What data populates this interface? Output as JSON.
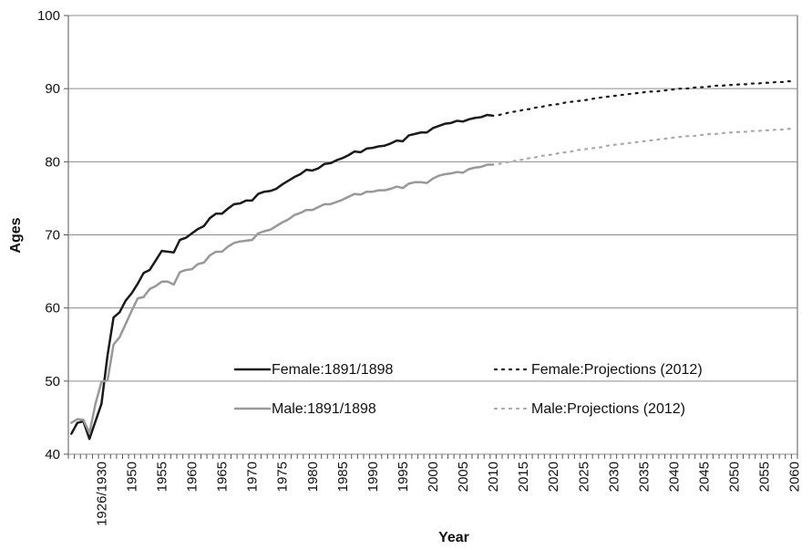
{
  "chart_data": {
    "type": "line",
    "x_label": "Year",
    "y_label": "Ages",
    "ylim": [
      40,
      100
    ],
    "yticks": [
      40,
      50,
      60,
      70,
      80,
      90,
      100
    ],
    "grid": true,
    "legend": "inside",
    "categories": [
      null,
      null,
      null,
      null,
      null,
      "1926/1930",
      null,
      null,
      null,
      null,
      "1950",
      null,
      null,
      null,
      null,
      "1955",
      null,
      null,
      null,
      null,
      "1960",
      null,
      null,
      null,
      null,
      "1965",
      null,
      null,
      null,
      null,
      "1970",
      null,
      null,
      null,
      null,
      "1975",
      null,
      null,
      null,
      null,
      "1980",
      null,
      null,
      null,
      null,
      "1985",
      null,
      null,
      null,
      null,
      "1990",
      null,
      null,
      null,
      null,
      "1995",
      null,
      null,
      null,
      null,
      "2000",
      null,
      null,
      null,
      null,
      "2005",
      null,
      null,
      null,
      null,
      "2010",
      null,
      null,
      null,
      null,
      "2015",
      null,
      null,
      null,
      null,
      "2020",
      null,
      null,
      null,
      null,
      "2025",
      null,
      null,
      null,
      null,
      "2030",
      null,
      null,
      null,
      null,
      "2035",
      null,
      null,
      null,
      null,
      "2040",
      null,
      null,
      null,
      null,
      "2045",
      null,
      null,
      null,
      null,
      "2050",
      null,
      null,
      null,
      null,
      "2055",
      null,
      null,
      null,
      null,
      "2060"
    ],
    "series": [
      {
        "name": "Female:1891/1898",
        "color": "#1a1a1a",
        "style": "solid",
        "values": [
          42.8,
          44.3,
          44.5,
          42.1,
          44.5,
          46.9,
          53.5,
          58.7,
          59.4,
          61.0,
          62.0,
          63.3,
          64.8,
          65.2,
          66.5,
          67.8,
          67.7,
          67.6,
          69.3,
          69.6,
          70.2,
          70.8,
          71.2,
          72.3,
          72.9,
          72.9,
          73.6,
          74.2,
          74.3,
          74.7,
          74.7,
          75.6,
          75.9,
          76.0,
          76.3,
          76.9,
          77.4,
          77.9,
          78.3,
          78.9,
          78.8,
          79.1,
          79.7,
          79.8,
          80.2,
          80.5,
          80.9,
          81.4,
          81.3,
          81.8,
          81.9,
          82.1,
          82.2,
          82.5,
          82.9,
          82.8,
          83.6,
          83.8,
          84.0,
          84.0,
          84.6,
          84.9,
          85.2,
          85.3,
          85.6,
          85.5,
          85.8,
          86.0,
          86.1,
          86.4,
          86.3,
          null,
          null,
          null,
          null,
          null,
          null,
          null,
          null,
          null,
          null,
          null,
          null,
          null,
          null,
          null,
          null,
          null,
          null,
          null,
          null,
          null,
          null,
          null,
          null,
          null,
          null,
          null,
          null,
          null,
          null,
          null,
          null,
          null,
          null,
          null,
          null,
          null,
          null,
          null,
          null,
          null,
          null,
          null,
          null,
          null,
          null,
          null,
          null,
          null,
          null
        ]
      },
      {
        "name": "Female:Projections (2012)",
        "color": "#1a1a1a",
        "style": "dotted",
        "values": [
          null,
          null,
          null,
          null,
          null,
          null,
          null,
          null,
          null,
          null,
          null,
          null,
          null,
          null,
          null,
          null,
          null,
          null,
          null,
          null,
          null,
          null,
          null,
          null,
          null,
          null,
          null,
          null,
          null,
          null,
          null,
          null,
          null,
          null,
          null,
          null,
          null,
          null,
          null,
          null,
          null,
          null,
          null,
          null,
          null,
          null,
          null,
          null,
          null,
          null,
          null,
          null,
          null,
          null,
          null,
          null,
          null,
          null,
          null,
          null,
          null,
          null,
          null,
          null,
          null,
          null,
          null,
          null,
          null,
          null,
          null,
          86.4,
          86.6,
          86.8,
          86.9,
          87.1,
          87.2,
          87.4,
          87.5,
          87.7,
          87.8,
          87.9,
          88.1,
          88.2,
          88.3,
          88.4,
          88.5,
          88.7,
          88.8,
          88.9,
          89.0,
          89.1,
          89.2,
          89.3,
          89.4,
          89.5,
          89.6,
          89.6,
          89.7,
          89.8,
          89.9,
          90.0,
          90.0,
          90.1,
          90.2,
          90.2,
          90.3,
          90.4,
          90.4,
          90.5,
          90.5,
          90.6,
          90.6,
          90.7,
          90.7,
          90.8,
          90.8,
          90.9,
          90.9,
          91.0,
          91.0
        ]
      },
      {
        "name": "Male:1891/1898",
        "color": "#999999",
        "style": "solid",
        "values": [
          44.3,
          44.8,
          44.7,
          42.9,
          46.9,
          49.9,
          50.1,
          55.0,
          56.0,
          57.8,
          59.6,
          61.3,
          61.5,
          62.6,
          63.0,
          63.6,
          63.6,
          63.2,
          64.9,
          65.2,
          65.3,
          66.0,
          66.2,
          67.2,
          67.7,
          67.7,
          68.4,
          68.9,
          69.1,
          69.2,
          69.3,
          70.2,
          70.5,
          70.7,
          71.2,
          71.7,
          72.1,
          72.7,
          73.0,
          73.4,
          73.4,
          73.8,
          74.2,
          74.2,
          74.5,
          74.8,
          75.2,
          75.6,
          75.5,
          75.9,
          75.9,
          76.1,
          76.1,
          76.3,
          76.6,
          76.4,
          77.0,
          77.2,
          77.2,
          77.1,
          77.7,
          78.1,
          78.3,
          78.4,
          78.6,
          78.5,
          79.0,
          79.2,
          79.3,
          79.6,
          79.6,
          null,
          null,
          null,
          null,
          null,
          null,
          null,
          null,
          null,
          null,
          null,
          null,
          null,
          null,
          null,
          null,
          null,
          null,
          null,
          null,
          null,
          null,
          null,
          null,
          null,
          null,
          null,
          null,
          null,
          null,
          null,
          null,
          null,
          null,
          null,
          null,
          null,
          null,
          null,
          null,
          null,
          null,
          null,
          null,
          null,
          null,
          null,
          null,
          null,
          null
        ]
      },
      {
        "name": "Male:Projections (2012)",
        "color": "#aaaaaa",
        "style": "dotted",
        "values": [
          null,
          null,
          null,
          null,
          null,
          null,
          null,
          null,
          null,
          null,
          null,
          null,
          null,
          null,
          null,
          null,
          null,
          null,
          null,
          null,
          null,
          null,
          null,
          null,
          null,
          null,
          null,
          null,
          null,
          null,
          null,
          null,
          null,
          null,
          null,
          null,
          null,
          null,
          null,
          null,
          null,
          null,
          null,
          null,
          null,
          null,
          null,
          null,
          null,
          null,
          null,
          null,
          null,
          null,
          null,
          null,
          null,
          null,
          null,
          null,
          null,
          null,
          null,
          null,
          null,
          null,
          null,
          null,
          null,
          null,
          null,
          79.7,
          79.9,
          80.0,
          80.2,
          80.3,
          80.5,
          80.6,
          80.8,
          80.9,
          81.0,
          81.2,
          81.3,
          81.4,
          81.6,
          81.7,
          81.8,
          81.9,
          82.0,
          82.2,
          82.3,
          82.4,
          82.5,
          82.6,
          82.7,
          82.8,
          82.9,
          83.0,
          83.1,
          83.2,
          83.3,
          83.4,
          83.5,
          83.5,
          83.6,
          83.7,
          83.8,
          83.8,
          83.9,
          84.0,
          84.0,
          84.1,
          84.1,
          84.2,
          84.2,
          84.3,
          84.3,
          84.4,
          84.4,
          84.5,
          84.5
        ]
      }
    ]
  }
}
